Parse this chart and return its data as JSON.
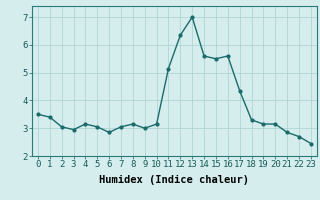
{
  "x": [
    0,
    1,
    2,
    3,
    4,
    5,
    6,
    7,
    8,
    9,
    10,
    11,
    12,
    13,
    14,
    15,
    16,
    17,
    18,
    19,
    20,
    21,
    22,
    23
  ],
  "y": [
    3.5,
    3.4,
    3.05,
    2.95,
    3.15,
    3.05,
    2.85,
    3.05,
    3.15,
    3.0,
    3.15,
    5.15,
    6.35,
    7.0,
    5.6,
    5.5,
    5.6,
    4.35,
    3.3,
    3.15,
    3.15,
    2.85,
    2.7,
    2.45
  ],
  "line_color": "#1a6b6b",
  "marker": "o",
  "marker_size": 2.0,
  "linewidth": 1.0,
  "bg_color": "#d5eded",
  "grid_color": "#b0d4d4",
  "xlabel": "Humidex (Indice chaleur)",
  "xlabel_fontsize": 7.5,
  "ylim": [
    2,
    7.4
  ],
  "xlim": [
    -0.5,
    23.5
  ],
  "yticks": [
    2,
    3,
    4,
    5,
    6,
    7
  ],
  "xticks": [
    0,
    1,
    2,
    3,
    4,
    5,
    6,
    7,
    8,
    9,
    10,
    11,
    12,
    13,
    14,
    15,
    16,
    17,
    18,
    19,
    20,
    21,
    22,
    23
  ],
  "tick_fontsize": 6.5
}
